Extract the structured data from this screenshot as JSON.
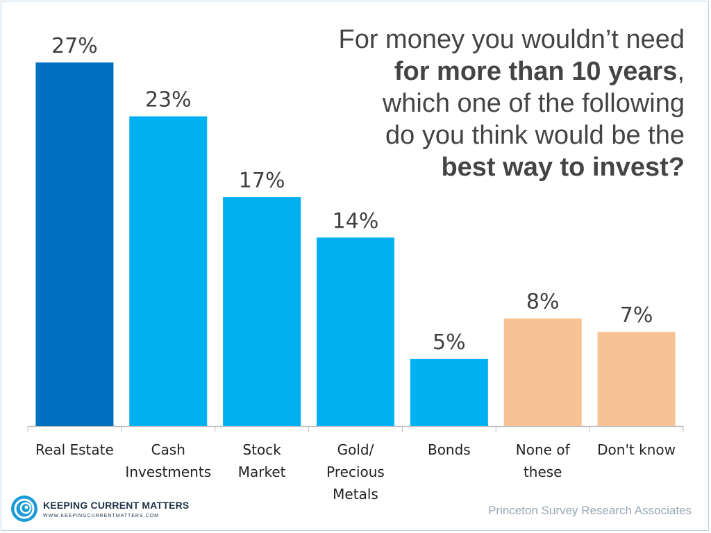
{
  "title": {
    "line1": "For money you wouldn’t need",
    "line2_bold": "for more than 10 years",
    "line2_tail": ",",
    "line3": "which one of the following",
    "line4": "do you think would be the",
    "line5_bold": "best way to invest?"
  },
  "chart_data": {
    "type": "bar",
    "categories": [
      [
        "Real Estate"
      ],
      [
        "Cash",
        "Investments"
      ],
      [
        "Stock",
        "Market"
      ],
      [
        "Gold/",
        "Precious",
        "Metals"
      ],
      [
        "Bonds"
      ],
      [
        "None of",
        "these"
      ],
      [
        "Don't know"
      ]
    ],
    "values": [
      27,
      23,
      17,
      14,
      5,
      8,
      7
    ],
    "value_labels": [
      "27%",
      "23%",
      "17%",
      "14%",
      "5%",
      "8%",
      "7%"
    ],
    "bar_colors": [
      "#0070c0",
      "#00b0f0",
      "#00b0f0",
      "#00b0f0",
      "#00b0f0",
      "#f8c394",
      "#f8c394"
    ],
    "ylim": [
      0,
      30
    ],
    "grid": false,
    "legend": "none"
  },
  "colors": {
    "axis": "#bfbfbf",
    "label_text": "#222222",
    "value_text": "#404040"
  },
  "brand": {
    "name": "Keeping Current Matters",
    "url": "www.keepingcurrentmatters.com",
    "icon": "swirl-logo-icon"
  },
  "source": "Princeton Survey Research Associates"
}
